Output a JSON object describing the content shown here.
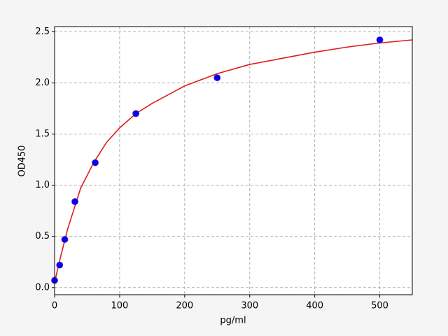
{
  "chart_data": {
    "type": "scatter",
    "xlabel": "pg/ml",
    "ylabel": "OD450",
    "points": {
      "color": "#0000ff",
      "x": [
        0,
        7.8,
        15.6,
        31.25,
        62.5,
        125,
        250,
        500
      ],
      "y": [
        0.07,
        0.22,
        0.47,
        0.84,
        1.22,
        1.7,
        2.05,
        2.42
      ]
    },
    "curve": {
      "color": "#dd1c1c",
      "x": [
        0,
        5,
        10,
        20,
        40,
        60,
        80,
        100,
        125,
        150,
        200,
        250,
        300,
        350,
        400,
        450,
        500,
        550
      ],
      "y": [
        0.05,
        0.19,
        0.32,
        0.57,
        0.97,
        1.22,
        1.42,
        1.56,
        1.7,
        1.8,
        1.97,
        2.09,
        2.18,
        2.24,
        2.3,
        2.35,
        2.39,
        2.42
      ]
    },
    "xlim": [
      0,
      550
    ],
    "ylim": [
      -0.07,
      2.55
    ],
    "xticks": [
      0,
      100,
      200,
      300,
      400,
      500
    ],
    "yticks": [
      {
        "value": 0,
        "label": "0.0"
      },
      0.5,
      {
        "value": 1,
        "label": "1.0"
      },
      1.5,
      {
        "value": 2,
        "label": "2.0"
      },
      2.5
    ],
    "grid": true
  }
}
